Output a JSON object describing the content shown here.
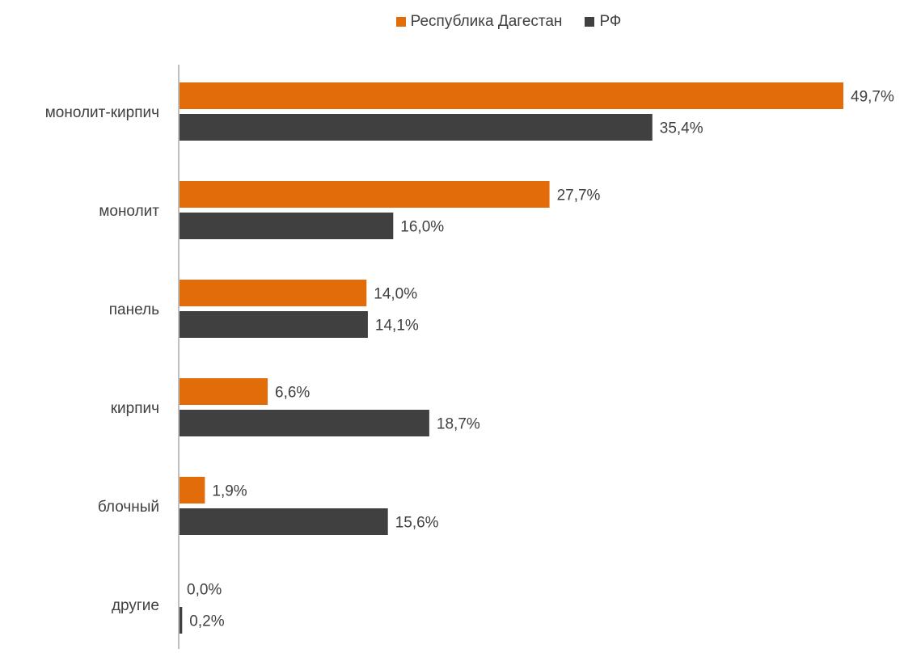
{
  "chart_data": {
    "type": "bar",
    "orientation": "horizontal",
    "categories": [
      "монолит-кирпич",
      "монолит",
      "панель",
      "кирпич",
      "блочный",
      "другие"
    ],
    "series": [
      {
        "name": "Республика Дагестан",
        "color": "#E36C0A",
        "values": [
          49.7,
          27.7,
          14.0,
          6.6,
          1.9,
          0.0
        ],
        "labels": [
          "49,7%",
          "27,7%",
          "14,0%",
          "6,6%",
          "1,9%",
          "0,0%"
        ]
      },
      {
        "name": "РФ",
        "color": "#404040",
        "values": [
          35.4,
          16.0,
          14.1,
          18.7,
          15.6,
          0.2
        ],
        "labels": [
          "35,4%",
          "16,0%",
          "14,1%",
          "18,7%",
          "15,6%",
          "0,2%"
        ]
      }
    ],
    "xlim": [
      0,
      50
    ],
    "grid": false,
    "legend_position": "top"
  }
}
